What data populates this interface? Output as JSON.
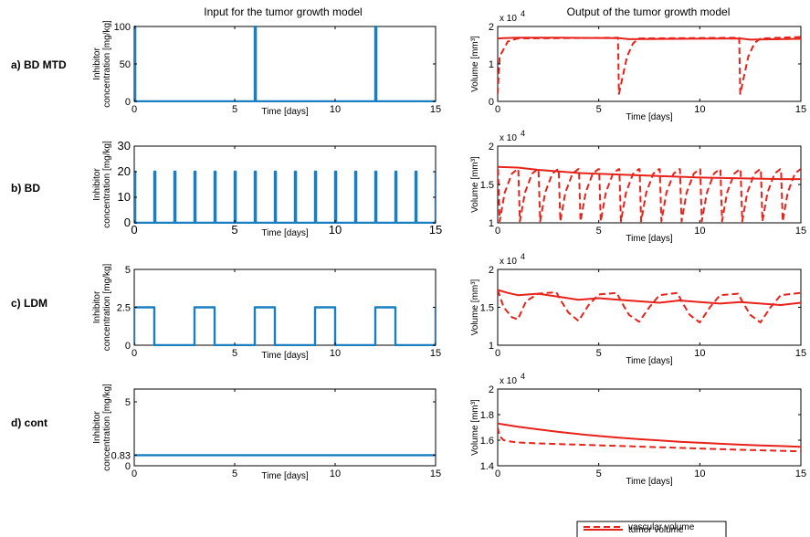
{
  "titles": {
    "input": "Input for the tumor growth model",
    "output": "Output of the tumor growth model"
  },
  "rows": [
    {
      "label": "a) BD MTD"
    },
    {
      "label": "b) BD"
    },
    {
      "label": "c) LDM"
    },
    {
      "label": "d) cont"
    }
  ],
  "legend": {
    "tumor": "tumor volume",
    "vascular": "vascular volume"
  },
  "colors": {
    "input": "#1a7fc1",
    "output": "#e8221a"
  },
  "chart_data": [
    {
      "id": "a-input",
      "type": "line",
      "xlabel": "Time [days]",
      "ylabel": [
        "Inhibitor",
        "concentration [mg/kg]"
      ],
      "xlim": [
        0,
        15
      ],
      "ylim": [
        0,
        100
      ],
      "xticks": [
        0,
        5,
        10,
        15
      ],
      "yticks": [
        0,
        50,
        100
      ],
      "schedule": {
        "kind": "pulses",
        "dose": 100,
        "start": 0,
        "period": 6,
        "width": 0.05
      }
    },
    {
      "id": "a-output",
      "type": "line",
      "xlabel": "Time [days]",
      "ylabel": [
        "Volume [mm³]"
      ],
      "yexp": "x 10",
      "xlim": [
        0,
        15
      ],
      "ylim": [
        0,
        20000
      ],
      "xticks": [
        0,
        5,
        10,
        15
      ],
      "yticks": [
        0,
        10000,
        20000
      ],
      "yticklabels": [
        "0",
        "1",
        "2"
      ],
      "series": [
        {
          "name": "tumor volume",
          "x": [
            0,
            0.3,
            1,
            3,
            6,
            6.5,
            9,
            12,
            12.5,
            15
          ],
          "y": [
            16800,
            16900,
            17000,
            17000,
            16900,
            16600,
            16700,
            16800,
            16500,
            16700
          ]
        },
        {
          "name": "vascular volume",
          "x": [
            0,
            0.1,
            0.5,
            1,
            5.95,
            6.0,
            6.2,
            6.4,
            6.7,
            7,
            11.95,
            12.0,
            12.2,
            12.4,
            12.7,
            13,
            15
          ],
          "y": [
            2000,
            12000,
            16000,
            16800,
            17000,
            2000,
            7000,
            12000,
            15500,
            16800,
            17000,
            2000,
            7000,
            12000,
            15500,
            16800,
            17200
          ]
        }
      ]
    },
    {
      "id": "b-input",
      "type": "line",
      "xlabel": "Time [days]",
      "ylabel": [
        "Inhibitor",
        "concentration [mg/kg]"
      ],
      "xlim": [
        0,
        15
      ],
      "ylim": [
        0,
        30
      ],
      "xticks": [
        0,
        5,
        10,
        15
      ],
      "yticks": [
        0,
        10,
        20,
        30
      ],
      "schedule": {
        "kind": "pulses",
        "dose": 20,
        "start": 0,
        "period": 1,
        "width": 0.05
      }
    },
    {
      "id": "b-output",
      "type": "line",
      "xlabel": "Time [days]",
      "ylabel": [
        "Volume [mm³]"
      ],
      "yexp": "x 10",
      "xlim": [
        0,
        15
      ],
      "ylim": [
        10000,
        20000
      ],
      "xticks": [
        0,
        5,
        10,
        15
      ],
      "yticks": [
        10000,
        15000,
        20000
      ],
      "yticklabels": [
        "1",
        "1.5",
        "2"
      ],
      "series": [
        {
          "name": "tumor volume",
          "x": [
            0,
            1,
            2,
            4,
            6,
            8,
            10,
            12,
            14,
            15
          ],
          "y": [
            17300,
            17200,
            16900,
            16500,
            16300,
            16100,
            15900,
            15800,
            15700,
            15700
          ]
        },
        {
          "name": "vascular volume",
          "periodic": {
            "period": 1,
            "count": 15,
            "min": 10200,
            "max": 17000,
            "drop": 0.08
          }
        }
      ]
    },
    {
      "id": "c-input",
      "type": "line",
      "xlabel": "Time [days]",
      "ylabel": [
        "Inhibitor",
        "concentration [mg/kg]"
      ],
      "xlim": [
        0,
        15
      ],
      "ylim": [
        0,
        5
      ],
      "xticks": [
        0,
        5,
        10,
        15
      ],
      "yticks": [
        0,
        2.5,
        5
      ],
      "schedule": {
        "kind": "blocks",
        "dose": 2.5,
        "start": 0,
        "period": 3,
        "width": 1
      }
    },
    {
      "id": "c-output",
      "type": "line",
      "xlabel": "Time [days]",
      "ylabel": [
        "Volume [mm³]"
      ],
      "yexp": "x 10",
      "xlim": [
        0,
        15
      ],
      "ylim": [
        10000,
        20000
      ],
      "xticks": [
        0,
        5,
        10,
        15
      ],
      "yticks": [
        10000,
        15000,
        20000
      ],
      "yticklabels": [
        "1",
        "1.5",
        "2"
      ],
      "series": [
        {
          "name": "tumor volume",
          "x": [
            0,
            0.5,
            1,
            2,
            3,
            4,
            5,
            6,
            7,
            8,
            9,
            10,
            11,
            12,
            13,
            14,
            15
          ],
          "y": [
            17300,
            16900,
            16600,
            16800,
            16400,
            16000,
            16200,
            16000,
            15800,
            15600,
            15900,
            15700,
            15500,
            15700,
            15500,
            15300,
            15600
          ]
        },
        {
          "name": "vascular volume",
          "x": [
            0,
            0.3,
            0.7,
            1.0,
            1.4,
            2.0,
            2.9,
            3.1,
            3.5,
            4.0,
            4.5,
            5.0,
            5.9,
            6.1,
            6.5,
            7.0,
            7.5,
            8.0,
            8.9,
            9.1,
            9.5,
            10.0,
            10.5,
            11.0,
            11.9,
            12.1,
            12.5,
            13.0,
            13.5,
            14.0,
            15.0
          ],
          "y": [
            17300,
            15000,
            13700,
            13400,
            15800,
            16800,
            17000,
            16000,
            14300,
            13200,
            15300,
            16700,
            16900,
            15800,
            14000,
            13100,
            15000,
            16600,
            16900,
            15800,
            14000,
            13000,
            15000,
            16600,
            16800,
            15800,
            14000,
            13000,
            15000,
            16600,
            16900
          ]
        }
      ]
    },
    {
      "id": "d-input",
      "type": "line",
      "xlabel": "Time [days]",
      "ylabel": [
        "Inhibitor",
        "concentration [mg/kg]"
      ],
      "xlim": [
        0,
        15
      ],
      "ylim": [
        0,
        6
      ],
      "xticks": [
        0,
        5,
        10,
        15
      ],
      "yticks": [
        0,
        0.83,
        5
      ],
      "yticklabels": [
        "0",
        "0.83",
        "5"
      ],
      "schedule": {
        "kind": "constant",
        "dose": 0.83
      }
    },
    {
      "id": "d-output",
      "type": "line",
      "xlabel": "Time [days]",
      "ylabel": [
        "Volume [mm³]"
      ],
      "yexp": "x 10",
      "xlim": [
        0,
        15
      ],
      "ylim": [
        14000,
        20000
      ],
      "xticks": [
        0,
        5,
        10,
        15
      ],
      "yticks": [
        14000,
        16000,
        18000,
        20000
      ],
      "yticklabels": [
        "1.4",
        "1.6",
        "1.8",
        "2"
      ],
      "series": [
        {
          "name": "tumor volume",
          "x": [
            0,
            1,
            2,
            3,
            4,
            5,
            6,
            7,
            8,
            9,
            10,
            11,
            12,
            13,
            14,
            15
          ],
          "y": [
            17300,
            17050,
            16850,
            16650,
            16480,
            16330,
            16200,
            16080,
            15980,
            15880,
            15800,
            15720,
            15650,
            15590,
            15540,
            15480
          ]
        },
        {
          "name": "vascular volume",
          "x": [
            0,
            0.1,
            0.3,
            0.6,
            1,
            2,
            4,
            6,
            8,
            10,
            12,
            14,
            15
          ],
          "y": [
            17000,
            16300,
            16000,
            15900,
            15820,
            15750,
            15650,
            15550,
            15450,
            15350,
            15250,
            15170,
            15130
          ]
        }
      ]
    }
  ]
}
